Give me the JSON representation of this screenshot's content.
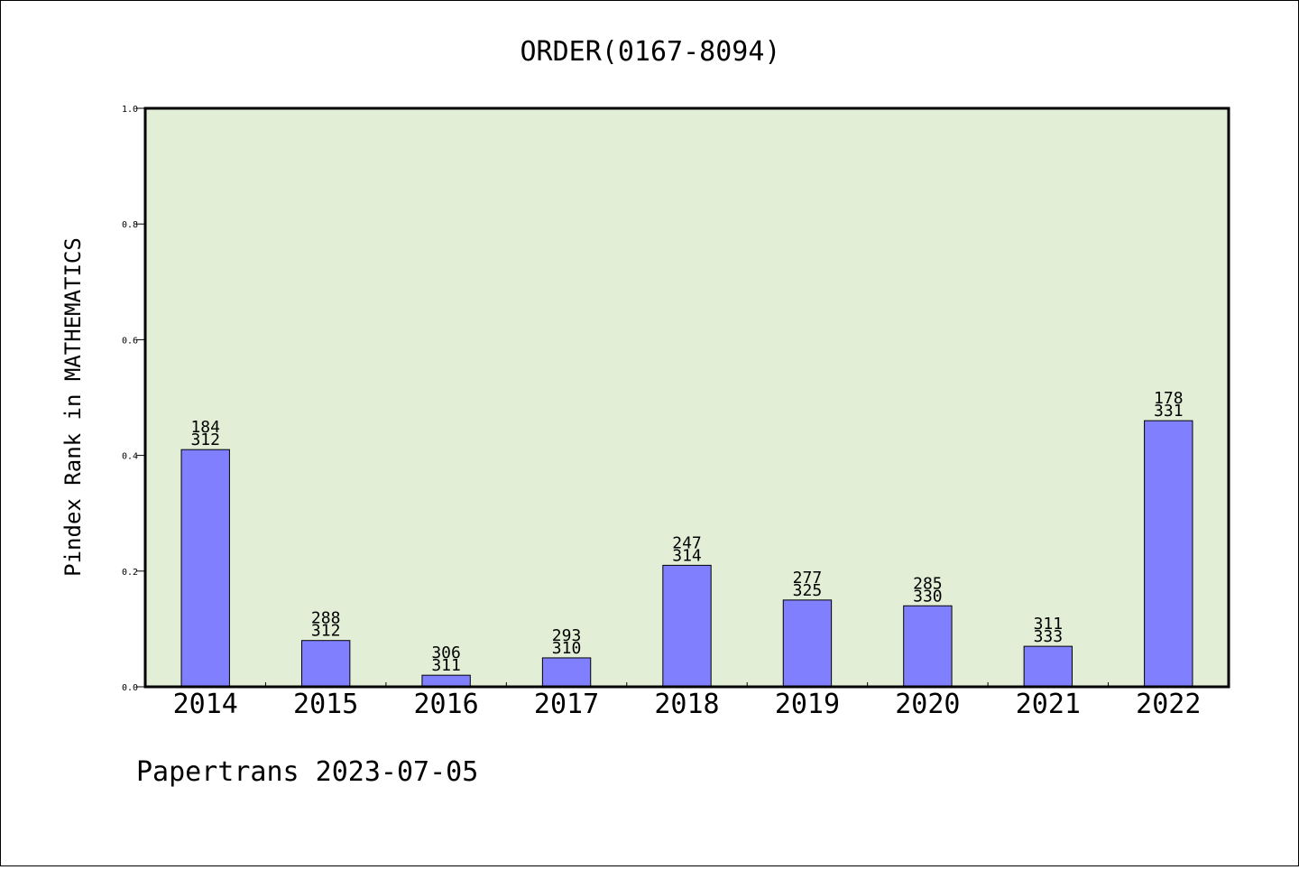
{
  "chart_data": {
    "type": "bar",
    "title": "ORDER(0167-8094)",
    "xlabel": "",
    "ylabel": "Pindex Rank in MATHEMATICS",
    "ylim": [
      0,
      1.0
    ],
    "yticks": [
      "0.0",
      "0.2",
      "0.4",
      "0.6",
      "0.8",
      "1.0"
    ],
    "categories": [
      "2014",
      "2015",
      "2016",
      "2017",
      "2018",
      "2019",
      "2020",
      "2021",
      "2022"
    ],
    "values": [
      0.41,
      0.08,
      0.02,
      0.05,
      0.21,
      0.15,
      0.14,
      0.07,
      0.46
    ],
    "rank_labels": [
      "184",
      "288",
      "306",
      "293",
      "247",
      "277",
      "285",
      "311",
      "178"
    ],
    "total_labels": [
      "312",
      "312",
      "311",
      "310",
      "314",
      "325",
      "330",
      "333",
      "331"
    ],
    "grid": false,
    "plot_background": "#e2efd6",
    "bar_color": "#8080ff"
  },
  "footer": "Papertrans 2023-07-05"
}
